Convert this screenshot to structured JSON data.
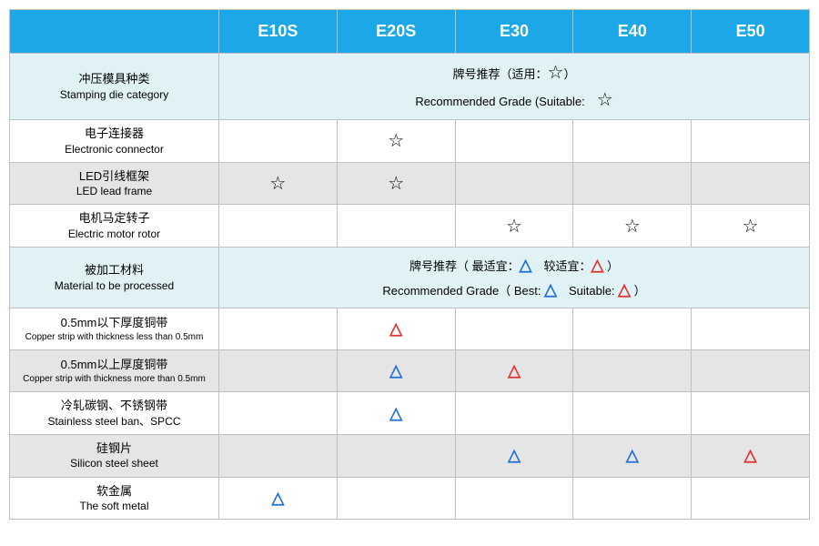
{
  "columns": [
    "E10S",
    "E20S",
    "E30",
    "E40",
    "E50"
  ],
  "section1": {
    "label_cn": "冲压模具种类",
    "label_en": "Stamping die category",
    "legend_cn_pre": "牌号推荐（适用：",
    "legend_cn_post": "）",
    "legend_en_pre": "Recommended Grade (Suitable:",
    "legend_en_post": "",
    "mark": "☆"
  },
  "rows1": [
    {
      "cn": "电子连接器",
      "en": "Electronic connector",
      "cells": [
        "",
        "star",
        "",
        "",
        ""
      ],
      "alt": false
    },
    {
      "cn": "LED引线框架",
      "en": "LED lead frame",
      "cells": [
        "star",
        "star",
        "",
        "",
        ""
      ],
      "alt": true
    },
    {
      "cn": "电机马定转子",
      "en": "Electric motor rotor",
      "cells": [
        "",
        "",
        "star",
        "star",
        "star"
      ],
      "alt": false
    }
  ],
  "section2": {
    "label_cn": "被加工材料",
    "label_en": "Material to be processed",
    "legend_cn": "牌号推荐（ 最适宜：△　较适宜：△ ）",
    "legend_en_pre": "Recommended Grade（ Best:",
    "legend_en_mid": "　Suitable:",
    "legend_en_post": " ）",
    "best": "△",
    "suit": "△"
  },
  "rows2": [
    {
      "cn": "0.5mm以下厚度铜带",
      "en": "Copper strip with thickness less than 0.5mm",
      "cells": [
        "",
        "red",
        "",
        "",
        ""
      ],
      "alt": false,
      "small": true
    },
    {
      "cn": "0.5mm以上厚度铜带",
      "en": "Copper strip with thickness more than 0.5mm",
      "cells": [
        "",
        "blue",
        "red",
        "",
        ""
      ],
      "alt": true,
      "small": true
    },
    {
      "cn": "冷轧碳钢、不锈钢带",
      "en": "Stainless steel ban、SPCC",
      "cells": [
        "",
        "blue",
        "",
        "",
        ""
      ],
      "alt": false
    },
    {
      "cn": "硅钢片",
      "en": "Silicon steel sheet",
      "cells": [
        "",
        "",
        "blue",
        "blue",
        "red"
      ],
      "alt": true
    },
    {
      "cn": "软金属",
      "en": "The soft metal",
      "cells": [
        "blue",
        "",
        "",
        "",
        ""
      ],
      "alt": false
    }
  ],
  "marks": {
    "star": "☆",
    "tri": "△"
  }
}
